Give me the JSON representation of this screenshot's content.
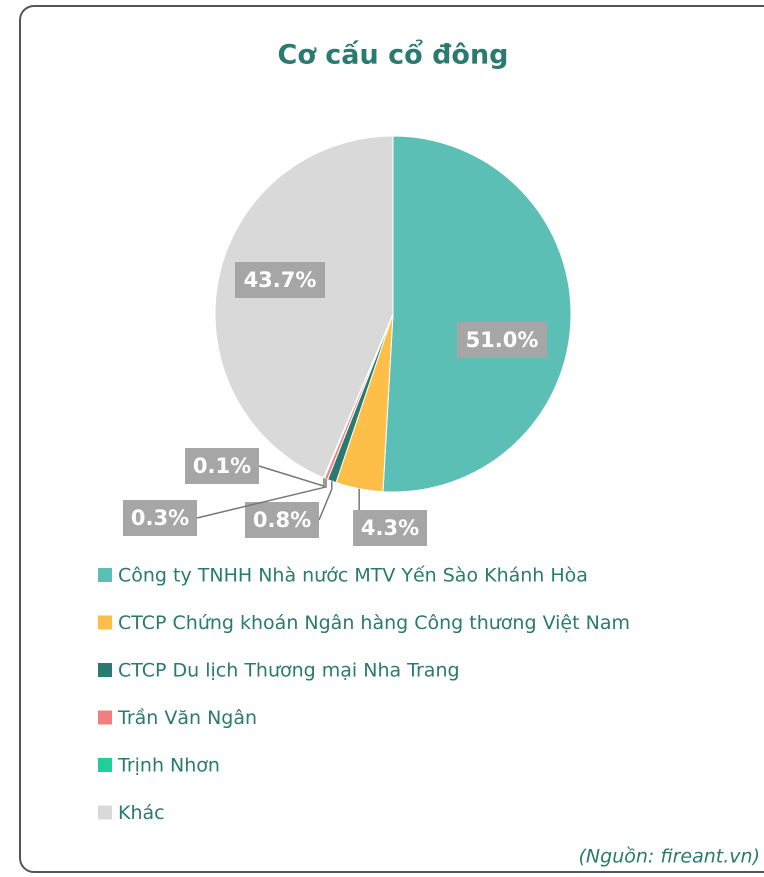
{
  "chart_data": {
    "type": "pie",
    "title": "Cơ cấu cổ đông",
    "categories": [
      "Công ty TNHH Nhà nước MTV Yến Sào Khánh Hòa",
      "CTCP Chứng khoán Ngân hàng Công thương Việt Nam",
      "CTCP Du lịch Thương mại Nha Trang",
      "Trần Văn Ngân",
      "Trịnh Nhơn",
      "Khác"
    ],
    "values": [
      51.0,
      4.3,
      0.8,
      0.3,
      0.1,
      43.7
    ],
    "value_labels": [
      "51.0%",
      "4.3%",
      "0.8%",
      "0.3%",
      "0.1%",
      "43.7%"
    ],
    "colors": [
      "#5bbfb5",
      "#fdbf47",
      "#2a7a6f",
      "#f08080",
      "#1fcf9a",
      "#d9d9d9"
    ],
    "legend": "bottom",
    "source": "(Nguồn: fireant.vn)"
  }
}
